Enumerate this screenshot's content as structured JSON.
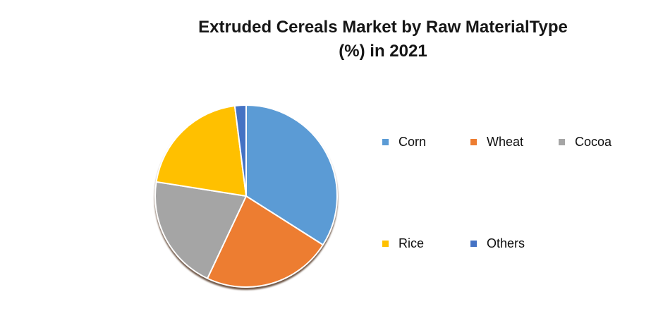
{
  "page": {
    "background_color": "#ffffff"
  },
  "chart_data": {
    "type": "pie",
    "title": "Extruded Cereals Market by Raw MaterialType\n(%) in 2021",
    "unit": "%",
    "categories": [
      "Corn",
      "Wheat",
      "Cocoa",
      "Rice",
      "Others"
    ],
    "values": [
      34,
      23,
      20.5,
      20.5,
      2
    ],
    "colors": [
      "#5B9BD5",
      "#ED7D31",
      "#A5A5A5",
      "#FFC000",
      "#4472C4"
    ],
    "start_angle_deg": 0,
    "direction": "clockwise",
    "slice_separator_color": "#ffffff",
    "data_labels_shown": false,
    "legend_position": "right",
    "legend_rows": [
      [
        "Corn",
        "Wheat",
        "Cocoa"
      ],
      [
        "Rice",
        "Others"
      ]
    ],
    "title_color": "#161616",
    "legend_text_color": "#0e0e0e"
  }
}
